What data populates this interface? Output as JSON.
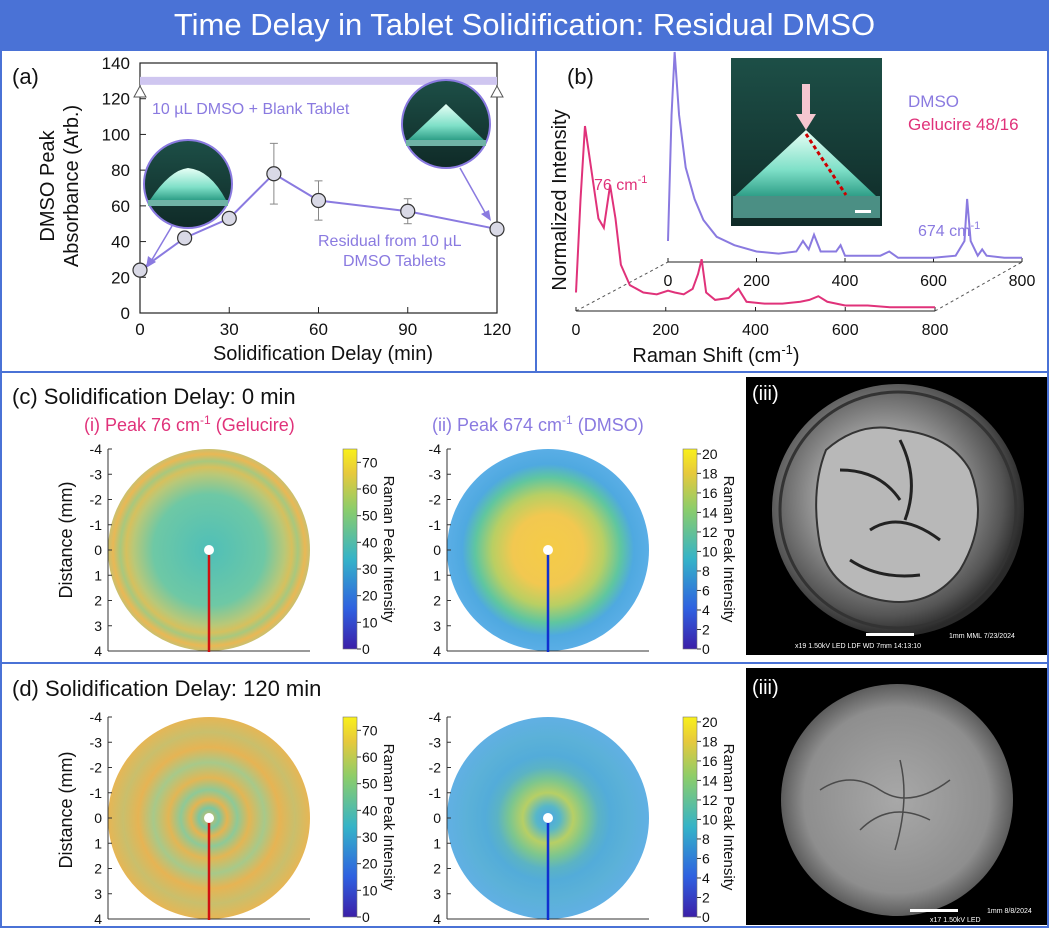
{
  "title": "Time Delay in Tablet Solidification: Residual DMSO",
  "colors": {
    "banner": "#4a72d6",
    "border": "#4a72d6",
    "dmso": "#8a7ae0",
    "gelucire": "#e0327a",
    "marker_fill": "#d9d9e6"
  },
  "panel_a": {
    "label": "(a)",
    "ylabel_line1": "DMSO Peak",
    "ylabel_line2": "Absorbance (Arb.)",
    "xlabel": "Solidification Delay (min)",
    "reference_label": "10 µL DMSO + Blank Tablet",
    "series_label_line1": "Residual from 10 µL",
    "series_label_line2": "DMSO Tablets"
  },
  "panel_b": {
    "label": "(b)",
    "ylabel": "Normalized Intensity",
    "xlabel_base": "Raman Shift (cm",
    "xlabel_sup": "-1",
    "xlabel_end": ")",
    "legend_dmso": "DMSO",
    "legend_gelucire": "Gelucire 48/16",
    "peak_gelucire": "76 cm",
    "peak_gelucire_sup": "-1",
    "peak_dmso": "674 cm",
    "peak_dmso_sup": "-1"
  },
  "panel_c": {
    "label": "(c) Solidification Delay: 0 min",
    "sub_i_a": "(i) Peak 76 cm",
    "sub_i_sup": "-1",
    "sub_i_b": " (Gelucire)",
    "sub_ii_a": "(ii) Peak 674 cm",
    "sub_ii_sup": "-1",
    "sub_ii_b": " (DMSO)",
    "sub_iii": "(iii)",
    "sem_text_1": "1mm   MML     7/23/2024",
    "sem_text_2": "x19     1.50kV LED     LDF     WD 7mm    14:13:10"
  },
  "panel_d": {
    "label": "(d) Solidification Delay: 120 min",
    "sub_iii": "(iii)",
    "sem_text_1": "1mm   8/8/2024",
    "sem_text_2": "x17     1.50kV LED"
  },
  "map_axis": {
    "ylabel": "Distance (mm)",
    "ticks": [
      "-4",
      "-3",
      "-2",
      "-1",
      "0",
      "1",
      "2",
      "3",
      "4"
    ]
  },
  "colorbar": {
    "label": "Raman Peak Intensity",
    "gelucire_ticks": [
      "70",
      "60",
      "50",
      "40",
      "30",
      "20",
      "10",
      "0"
    ],
    "dmso_ticks": [
      "20",
      "18",
      "16",
      "14",
      "12",
      "10",
      "8",
      "6",
      "4",
      "2",
      "0"
    ]
  },
  "chart_data": [
    {
      "type": "scatter",
      "panel": "a",
      "xlabel": "Solidification Delay (min)",
      "ylabel": "DMSO Peak Absorbance (Arb.)",
      "xlim": [
        0,
        120
      ],
      "ylim": [
        0,
        140
      ],
      "xticks": [
        0,
        30,
        60,
        90,
        120
      ],
      "yticks": [
        0,
        20,
        40,
        60,
        80,
        100,
        120,
        140
      ],
      "series": [
        {
          "name": "Residual from 10 µL DMSO Tablets",
          "x": [
            0,
            15,
            30,
            45,
            60,
            90,
            120
          ],
          "y": [
            24,
            42,
            53,
            78,
            63,
            57,
            47
          ],
          "err": [
            0,
            0,
            0,
            17,
            11,
            7,
            0
          ]
        }
      ],
      "reference": {
        "name": "10 µL DMSO + Blank Tablet",
        "y": 130
      }
    },
    {
      "type": "line",
      "panel": "b",
      "xlabel": "Raman Shift (cm-1)",
      "ylabel": "Normalized Intensity",
      "xlim": [
        0,
        800
      ],
      "xticks": [
        0,
        200,
        400,
        600,
        800
      ],
      "series": [
        {
          "name": "Gelucire 48/16",
          "x": [
            0,
            10,
            20,
            35,
            50,
            62,
            76,
            88,
            100,
            120,
            150,
            180,
            205,
            220,
            240,
            260,
            272,
            280,
            290,
            310,
            340,
            362,
            380,
            420,
            460,
            500,
            520,
            540,
            560,
            600,
            650,
            700,
            760,
            800
          ],
          "y": [
            0.1,
            0.6,
            1.0,
            0.75,
            0.5,
            0.45,
            0.68,
            0.5,
            0.25,
            0.14,
            0.1,
            0.09,
            0.11,
            0.1,
            0.09,
            0.12,
            0.2,
            0.28,
            0.1,
            0.06,
            0.07,
            0.12,
            0.05,
            0.04,
            0.04,
            0.05,
            0.06,
            0.08,
            0.05,
            0.03,
            0.03,
            0.02,
            0.02,
            0.02
          ]
        },
        {
          "name": "DMSO",
          "x": [
            0,
            8,
            15,
            25,
            40,
            60,
            80,
            110,
            150,
            200,
            250,
            290,
            305,
            318,
            330,
            345,
            380,
            390,
            400,
            480,
            500,
            520,
            600,
            650,
            670,
            676,
            684,
            700,
            710,
            720,
            760,
            800
          ],
          "y": [
            0.1,
            0.7,
            1.0,
            0.7,
            0.45,
            0.3,
            0.2,
            0.12,
            0.08,
            0.05,
            0.04,
            0.05,
            0.1,
            0.06,
            0.13,
            0.05,
            0.05,
            0.08,
            0.03,
            0.03,
            0.05,
            0.02,
            0.02,
            0.03,
            0.1,
            0.3,
            0.1,
            0.03,
            0.06,
            0.03,
            0.02,
            0.02
          ]
        }
      ]
    }
  ]
}
